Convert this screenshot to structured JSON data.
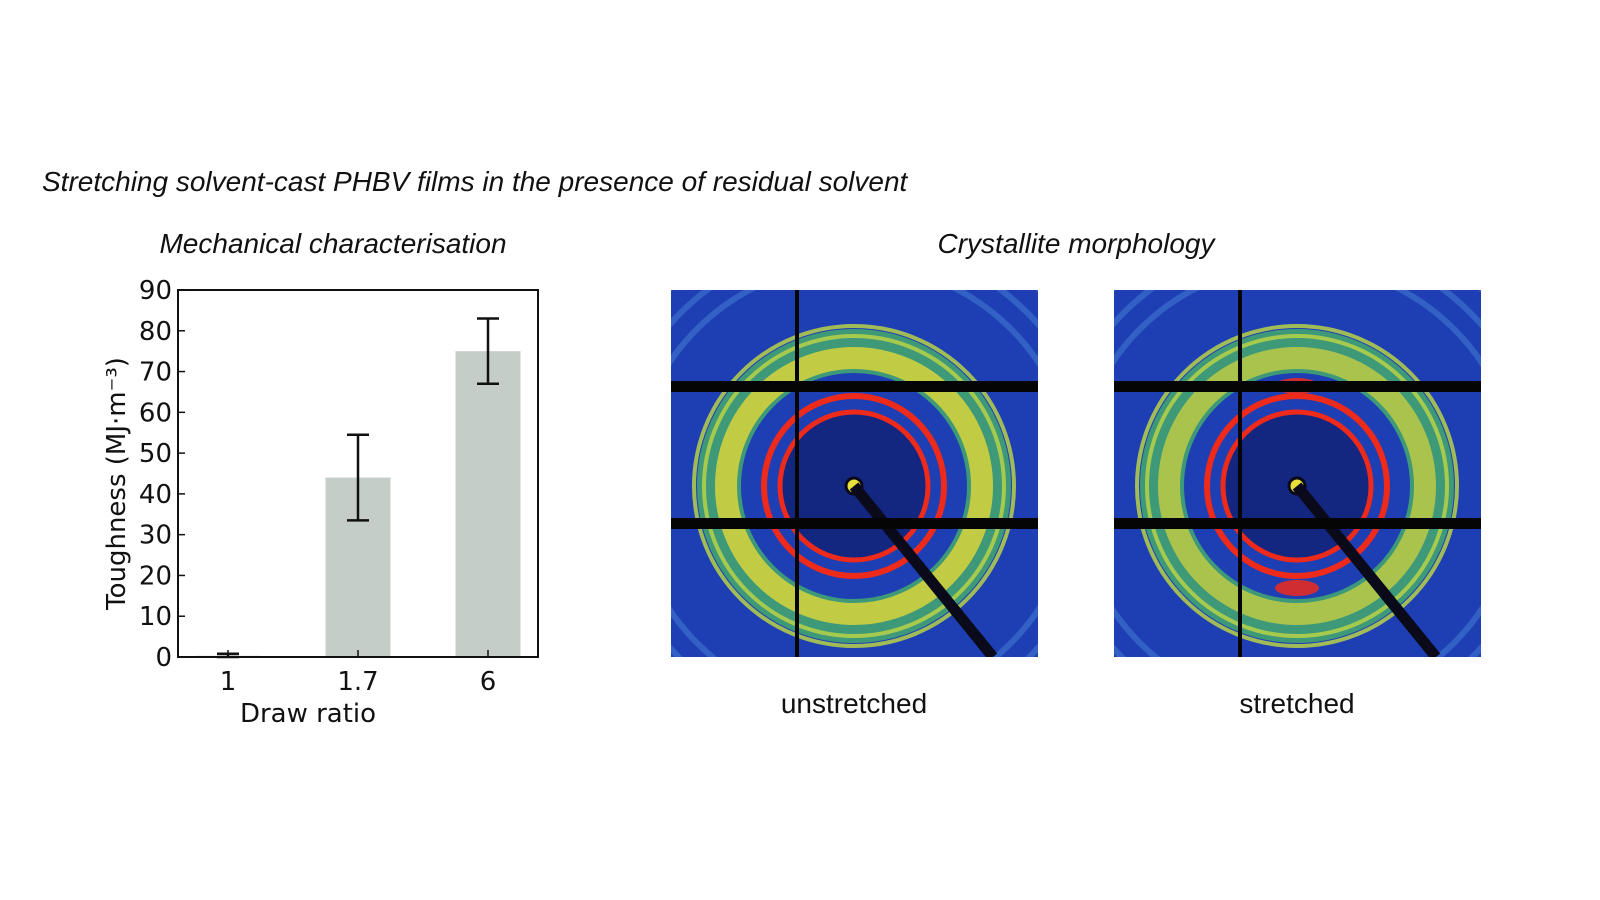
{
  "figure_title": "Stretching solvent-cast PHBV films in the presence of residual solvent",
  "left_panel": {
    "title": "Mechanical characterisation"
  },
  "right_panel": {
    "title": "Crystallite morphology",
    "images": [
      {
        "caption": "unstretched",
        "ring_color": "#ee2a1a",
        "bg_color": "#1e3fb4"
      },
      {
        "caption": "stretched",
        "ring_color": "#ee2a1a",
        "bg_color": "#1e3fb4"
      }
    ]
  },
  "chart_data": {
    "type": "bar",
    "title": "Mechanical characterisation",
    "xlabel": "Draw ratio",
    "ylabel": "Toughness (MJ·m⁻³)",
    "categories": [
      "1",
      "1.7",
      "6"
    ],
    "values": [
      0.3,
      44,
      75
    ],
    "error": [
      0.5,
      10.5,
      8
    ],
    "ylim": [
      0,
      90
    ],
    "yticks": [
      0,
      10,
      20,
      30,
      40,
      50,
      60,
      70,
      80,
      90
    ],
    "bar_color": "#c5cdc9",
    "grid": false
  }
}
